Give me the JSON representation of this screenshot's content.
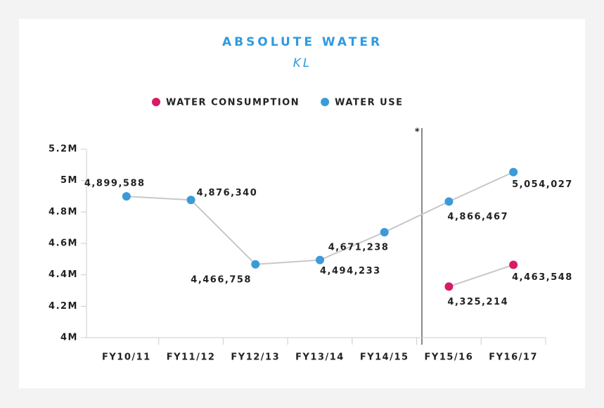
{
  "chart_data": {
    "type": "line",
    "title": "ABSOLUTE WATER",
    "subtitle": "KL",
    "annotation": "*",
    "categories": [
      "FY10/11",
      "FY11/12",
      "FY12/13",
      "FY13/14",
      "FY14/15",
      "FY15/16",
      "FY16/17"
    ],
    "series": [
      {
        "name": "WATER CONSUMPTION",
        "color": "#d81b65",
        "values": [
          null,
          null,
          null,
          null,
          null,
          4325214,
          4463548
        ],
        "value_labels": [
          null,
          null,
          null,
          null,
          null,
          "4,325,214",
          "4,463,548"
        ]
      },
      {
        "name": "WATER USE",
        "color": "#3b9bd8",
        "values": [
          4899588,
          4876340,
          4466758,
          4494233,
          4671238,
          4866467,
          5054027
        ],
        "value_labels": [
          "4,899,588",
          "4,876,340",
          "4,466,758",
          "4,494,233",
          "4,671,238",
          "4,866,467",
          "5,054,027"
        ]
      }
    ],
    "ylim": [
      4000000,
      5200000
    ],
    "yticks": [
      {
        "value": 4000000,
        "label": "4M"
      },
      {
        "value": 4200000,
        "label": "4.2M"
      },
      {
        "value": 4400000,
        "label": "4.4M"
      },
      {
        "value": 4600000,
        "label": "4.6M"
      },
      {
        "value": 4800000,
        "label": "4.8M"
      },
      {
        "value": 5000000,
        "label": "5M"
      },
      {
        "value": 5200000,
        "label": "5.2M"
      }
    ],
    "legend": "top"
  }
}
